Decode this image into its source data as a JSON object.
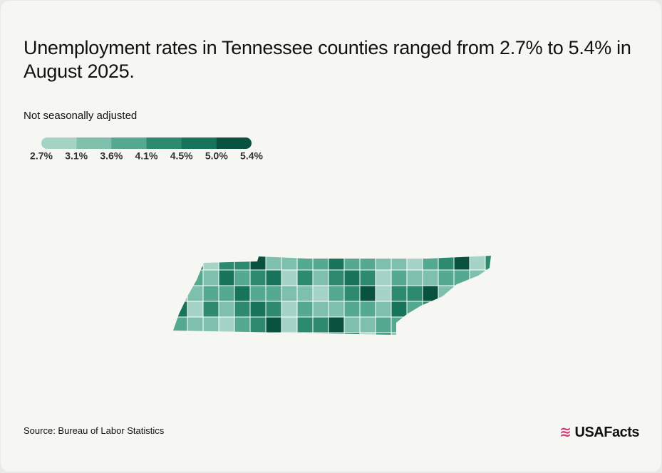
{
  "title": "Unemployment rates in Tennessee counties ranged from 2.7% to 5.4% in August 2025.",
  "subtitle": "Not seasonally adjusted",
  "legend": {
    "colors": [
      "#a5d3c5",
      "#7fc0ad",
      "#55a990",
      "#2e8a6f",
      "#17735a",
      "#08523f"
    ],
    "ticks": [
      {
        "value": 2.7,
        "label": "2.7%"
      },
      {
        "value": 3.1,
        "label": "3.1%"
      },
      {
        "value": 3.6,
        "label": "3.6%"
      },
      {
        "value": 4.1,
        "label": "4.1%"
      },
      {
        "value": 4.5,
        "label": "4.5%"
      },
      {
        "value": 5.0,
        "label": "5.0%"
      },
      {
        "value": 5.4,
        "label": "5.4%"
      }
    ]
  },
  "source": "Source: Bureau of Labor Statistics",
  "logo": "USAFacts"
}
